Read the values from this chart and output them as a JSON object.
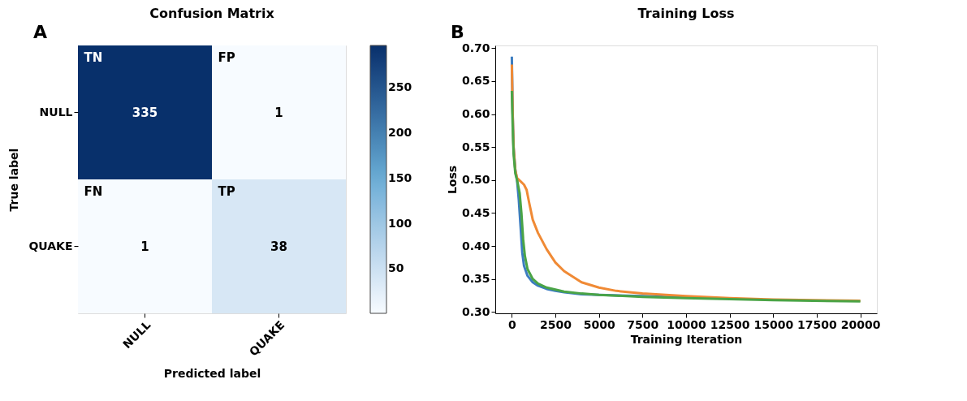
{
  "chart_data": [
    {
      "type": "heatmap",
      "title": "Confusion Matrix",
      "xlabel": "Predicted label",
      "ylabel": "True label",
      "categories": [
        "NULL",
        "QUAKE"
      ],
      "y_categories": [
        "NULL",
        "QUAKE"
      ],
      "cells": [
        [
          335,
          1
        ],
        [
          1,
          38
        ]
      ],
      "data_labels": true,
      "clim": [
        1,
        297
      ],
      "cticks": [
        50,
        100,
        150,
        200,
        250
      ],
      "annotations": [
        "A",
        "TN",
        "FP",
        "FN",
        "TP"
      ]
    },
    {
      "type": "line",
      "title": "Training Loss",
      "xlabel": "Training Iteration",
      "ylabel": "Loss",
      "xlim": [
        -950,
        20950
      ],
      "xticks": [
        0,
        2500,
        5000,
        7500,
        10000,
        12500,
        15000,
        17500,
        20000
      ],
      "ylim": [
        0.298,
        0.704
      ],
      "yticks": [
        {
          "value": 0.3,
          "label": "0.30"
        },
        0.35,
        {
          "value": 0.4,
          "label": "0.40"
        },
        0.45,
        {
          "value": 0.5,
          "label": "0.50"
        },
        0.55,
        {
          "value": 0.6,
          "label": "0.60"
        },
        0.65,
        {
          "value": 0.7,
          "label": "0.70"
        }
      ],
      "grid": false,
      "legend": false,
      "marker": "none",
      "line_style": "solid",
      "annotations": [
        "B"
      ],
      "series": [
        {
          "color": "#3c7dc0",
          "x": [
            0,
            50,
            100,
            200,
            300,
            400,
            500,
            600,
            700,
            900,
            1200,
            1500,
            2000,
            2500,
            3000,
            4000,
            5000,
            7500,
            10000
          ],
          "values": [
            0.687,
            0.6,
            0.55,
            0.515,
            0.5,
            0.47,
            0.43,
            0.39,
            0.37,
            0.355,
            0.345,
            0.34,
            0.335,
            0.332,
            0.33,
            0.327,
            0.326,
            0.324,
            0.322
          ]
        },
        {
          "color": "#f08a35",
          "x": [
            0,
            50,
            100,
            200,
            300,
            500,
            700,
            850,
            1000,
            1200,
            1500,
            2000,
            2500,
            3000,
            4000,
            5000,
            6000,
            7500,
            10000,
            12500,
            15000,
            20000
          ],
          "values": [
            0.675,
            0.6,
            0.55,
            0.515,
            0.503,
            0.498,
            0.493,
            0.485,
            0.465,
            0.44,
            0.42,
            0.395,
            0.375,
            0.362,
            0.345,
            0.337,
            0.332,
            0.328,
            0.324,
            0.321,
            0.319,
            0.317
          ]
        },
        {
          "color": "#4aa446",
          "x": [
            0,
            50,
            100,
            200,
            300,
            450,
            550,
            650,
            750,
            900,
            1200,
            1500,
            2000,
            2500,
            3000,
            4000,
            5000,
            7500,
            10000,
            15000,
            20000
          ],
          "values": [
            0.635,
            0.58,
            0.54,
            0.51,
            0.5,
            0.48,
            0.45,
            0.41,
            0.385,
            0.365,
            0.35,
            0.343,
            0.337,
            0.334,
            0.331,
            0.328,
            0.326,
            0.323,
            0.321,
            0.318,
            0.316
          ]
        }
      ]
    }
  ]
}
